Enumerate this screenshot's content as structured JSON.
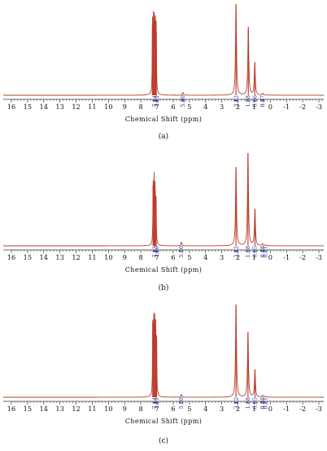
{
  "figure": {
    "panel_labels": [
      "(a)",
      "(b)",
      "(c)"
    ]
  },
  "chart_data": [
    {
      "type": "line",
      "panel": "(a)",
      "xlabel": "Chemical Shift (ppm)",
      "xlim": [
        16.5,
        -3.3
      ],
      "x_ticks": [
        16,
        15,
        14,
        13,
        12,
        11,
        10,
        9,
        8,
        7,
        6,
        5,
        4,
        3,
        2,
        1,
        0,
        -1,
        -2,
        -3
      ],
      "x_tick_labels": [
        "16",
        "15",
        "14",
        "13",
        "12",
        "11",
        "10",
        "9",
        "8",
        "7",
        "6",
        "5",
        "4",
        "3",
        "2",
        "1",
        "0",
        "-1",
        "-2",
        "-3"
      ],
      "peaks": [
        {
          "x": 7.28,
          "y": 0.77
        },
        {
          "x": 7.22,
          "y": 0.78
        },
        {
          "x": 7.16,
          "y": 0.82
        },
        {
          "x": 7.1,
          "y": 0.75
        },
        {
          "x": 7.05,
          "y": 0.7
        },
        {
          "x": 5.4,
          "y": 0.03
        },
        {
          "x": 2.12,
          "y": 1.0
        },
        {
          "x": 1.36,
          "y": 0.75
        },
        {
          "x": 0.96,
          "y": 0.36
        },
        {
          "x": 0.47,
          "y": 0.02
        }
      ],
      "integrals": [
        {
          "x": 7.14,
          "label": "7.14"
        },
        {
          "x": 7.01,
          "label": "7.01"
        },
        {
          "x": 5.4,
          "label": "5.40"
        },
        {
          "x": 2.12,
          "label": "2.12"
        },
        {
          "x": 1.38,
          "label": "1.38"
        },
        {
          "x": 0.96,
          "label": "0.96"
        },
        {
          "x": 0.47,
          "label": "0.47"
        }
      ]
    },
    {
      "type": "line",
      "panel": "(b)",
      "xlabel": "Chemical Shift (ppm)",
      "xlim": [
        16.5,
        -3.3
      ],
      "x_ticks": [
        16,
        15,
        14,
        13,
        12,
        11,
        10,
        9,
        8,
        7,
        6,
        5,
        4,
        3,
        2,
        1,
        0,
        -1,
        -2,
        -3
      ],
      "x_tick_labels": [
        "16",
        "15",
        "14",
        "13",
        "12",
        "11",
        "10",
        "9",
        "8",
        "7",
        "6",
        "5",
        "4",
        "3",
        "2",
        "1",
        "0",
        "-1",
        "-2",
        "-3"
      ],
      "peaks": [
        {
          "x": 7.24,
          "y": 0.65
        },
        {
          "x": 7.18,
          "y": 0.68
        },
        {
          "x": 7.12,
          "y": 0.6
        },
        {
          "x": 7.06,
          "y": 0.52
        },
        {
          "x": 5.5,
          "y": 0.04
        },
        {
          "x": 2.12,
          "y": 0.85
        },
        {
          "x": 1.38,
          "y": 1.0
        },
        {
          "x": 0.95,
          "y": 0.4
        },
        {
          "x": 0.48,
          "y": 0.02
        },
        {
          "x": 0.31,
          "y": 0.01
        }
      ],
      "integrals": [
        {
          "x": 7.13,
          "label": "7.13"
        },
        {
          "x": 7.0,
          "label": "7.00"
        },
        {
          "x": 5.5,
          "label": "5.50"
        },
        {
          "x": 2.12,
          "label": "2.12"
        },
        {
          "x": 1.38,
          "label": "1.38"
        },
        {
          "x": 0.95,
          "label": "0.95"
        },
        {
          "x": 0.48,
          "label": "0.48"
        },
        {
          "x": 0.31,
          "label": "0.31"
        }
      ]
    },
    {
      "type": "line",
      "panel": "(c)",
      "xlabel": "Chemical Shift (ppm)",
      "xlim": [
        16.5,
        -3.3
      ],
      "x_ticks": [
        16,
        15,
        14,
        13,
        12,
        11,
        10,
        9,
        8,
        7,
        6,
        5,
        4,
        3,
        2,
        1,
        0,
        -1,
        -2,
        -3
      ],
      "x_tick_labels": [
        "16",
        "15",
        "14",
        "13",
        "12",
        "11",
        "10",
        "9",
        "8",
        "7",
        "6",
        "5",
        "4",
        "3",
        "2",
        "1",
        "0",
        "-1",
        "-2",
        "-3"
      ],
      "peaks": [
        {
          "x": 7.26,
          "y": 0.8
        },
        {
          "x": 7.2,
          "y": 0.84
        },
        {
          "x": 7.14,
          "y": 0.76
        },
        {
          "x": 7.08,
          "y": 0.68
        },
        {
          "x": 7.03,
          "y": 0.62
        },
        {
          "x": 5.5,
          "y": 0.03
        },
        {
          "x": 2.12,
          "y": 1.0
        },
        {
          "x": 1.38,
          "y": 0.7
        },
        {
          "x": 0.95,
          "y": 0.3
        },
        {
          "x": 0.48,
          "y": 0.02
        },
        {
          "x": 0.31,
          "y": 0.01
        }
      ],
      "integrals": [
        {
          "x": 7.14,
          "label": "7.14"
        },
        {
          "x": 7.01,
          "label": "7.01"
        },
        {
          "x": 5.5,
          "label": "5.50"
        },
        {
          "x": 2.12,
          "label": "2.12"
        },
        {
          "x": 1.38,
          "label": "1.38"
        },
        {
          "x": 0.95,
          "label": "0.95"
        },
        {
          "x": 0.48,
          "label": "0.48"
        },
        {
          "x": 0.31,
          "label": "0.31"
        }
      ]
    }
  ]
}
